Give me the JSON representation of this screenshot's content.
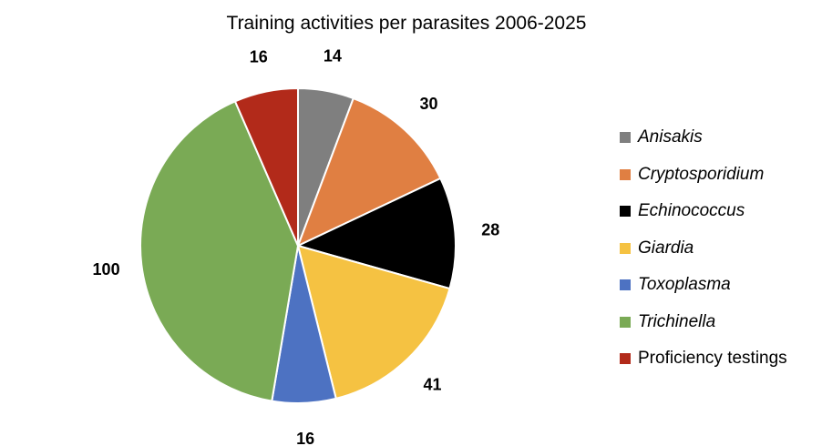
{
  "chart_data": {
    "type": "pie",
    "title": "Training activities per parasites 2006-2025",
    "legend_position": "right",
    "slices": [
      {
        "label": "Anisakis",
        "value": 14,
        "value_label": "14",
        "color": "#7f7f7f",
        "italic": true
      },
      {
        "label": "Cryptosporidium",
        "value": 30,
        "value_label": "30",
        "color": "#e07f42",
        "italic": true
      },
      {
        "label": "Echinococcus",
        "value": 28,
        "value_label": "28",
        "color": "#000000",
        "italic": true
      },
      {
        "label": "Giardia",
        "value": 41,
        "value_label": "41",
        "color": "#f5c242",
        "italic": true
      },
      {
        "label": "Toxoplasma",
        "value": 16,
        "value_label": "16",
        "color": "#4d72c2",
        "italic": true
      },
      {
        "label": "Trichinella",
        "value": 100,
        "value_label": "100",
        "color": "#7aaa55",
        "italic": true
      },
      {
        "label": "Proficiency testings",
        "value": 16,
        "value_label": "16",
        "color": "#b22a1a",
        "italic": false
      }
    ]
  }
}
